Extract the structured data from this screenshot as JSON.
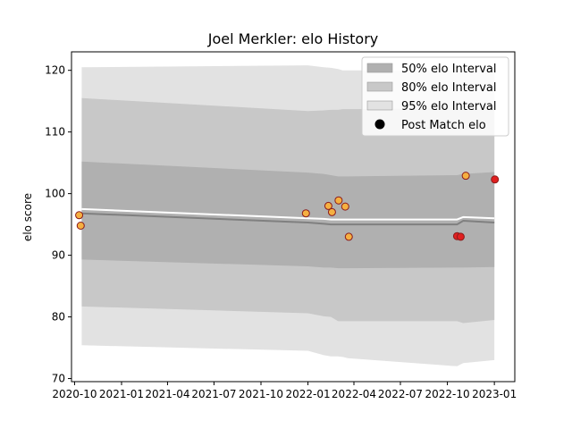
{
  "chart_data": {
    "type": "scatter",
    "title": "Joel Merkler: elo History",
    "xlabel": "",
    "ylabel": "elo score",
    "xlim": [
      "2020-09-25",
      "2023-02-10"
    ],
    "ylim": [
      69.5,
      123.0
    ],
    "x_ticks": [
      "2020-10",
      "2021-01",
      "2021-04",
      "2021-07",
      "2021-10",
      "2022-01",
      "2022-04",
      "2022-07",
      "2022-10",
      "2023-01"
    ],
    "y_ticks": [
      70,
      80,
      90,
      100,
      110,
      120
    ],
    "grid": false,
    "legend_position": "top-right",
    "legend": [
      {
        "label": "50% elo Interval",
        "kind": "band",
        "color": "#b0b0b0"
      },
      {
        "label": "80% elo Interval",
        "kind": "band",
        "color": "#c8c8c8"
      },
      {
        "label": "95% elo Interval",
        "kind": "band",
        "color": "#e2e2e2"
      },
      {
        "label": "Post Match elo",
        "kind": "marker",
        "color": "#000000"
      }
    ],
    "x": [
      "2020-10-15",
      "2022-01-01",
      "2022-02-01",
      "2022-02-15",
      "2022-03-01",
      "2022-03-10",
      "2022-03-20",
      "2022-10-20",
      "2022-11-01",
      "2023-01-01"
    ],
    "bands": {
      "p95": {
        "upper": [
          120.5,
          120.8,
          120.5,
          120.4,
          120.2,
          120.0,
          120.0,
          120.0,
          120.0,
          120.0
        ],
        "lower": [
          75.4,
          74.5,
          73.8,
          73.6,
          73.6,
          73.5,
          73.3,
          72.0,
          72.5,
          73.0
        ]
      },
      "p80": {
        "upper": [
          115.5,
          113.4,
          113.5,
          113.6,
          113.6,
          113.7,
          113.7,
          113.8,
          113.6,
          113.7
        ],
        "lower": [
          81.7,
          80.6,
          80.1,
          80.0,
          79.3,
          79.3,
          79.3,
          79.3,
          79.0,
          79.5
        ]
      },
      "p50": {
        "upper": [
          105.2,
          103.4,
          103.2,
          103.0,
          102.8,
          102.8,
          102.8,
          103.0,
          103.2,
          103.5
        ],
        "lower": [
          89.3,
          88.2,
          88.0,
          88.0,
          87.9,
          87.9,
          87.9,
          88.0,
          88.0,
          88.1
        ]
      }
    },
    "series": [
      {
        "kind": "median_line",
        "color": "#808080",
        "values": [
          96.8,
          95.3,
          95.1,
          95.0,
          95.0,
          95.0,
          95.0,
          95.0,
          95.6,
          95.3
        ]
      },
      {
        "kind": "mean_line",
        "color": "#ffffff",
        "values": [
          97.5,
          96.0,
          95.9,
          95.8,
          95.8,
          95.8,
          95.8,
          95.8,
          96.2,
          96.0
        ]
      },
      {
        "name": "Post Match elo",
        "kind": "points",
        "points": [
          {
            "x": "2020-10-10",
            "y": 96.5,
            "color": "#f5b041"
          },
          {
            "x": "2020-10-13",
            "y": 94.8,
            "color": "#f5b041"
          },
          {
            "x": "2021-12-28",
            "y": 96.8,
            "color": "#f5b041"
          },
          {
            "x": "2022-02-10",
            "y": 98.0,
            "color": "#f5b041"
          },
          {
            "x": "2022-02-17",
            "y": 97.0,
            "color": "#f5b041"
          },
          {
            "x": "2022-03-02",
            "y": 98.9,
            "color": "#f5b041"
          },
          {
            "x": "2022-03-15",
            "y": 97.9,
            "color": "#f5b041"
          },
          {
            "x": "2022-03-22",
            "y": 93.0,
            "color": "#f5b041"
          },
          {
            "x": "2022-10-20",
            "y": 93.1,
            "color": "#e02020"
          },
          {
            "x": "2022-10-27",
            "y": 93.0,
            "color": "#e02020"
          },
          {
            "x": "2022-11-06",
            "y": 102.9,
            "color": "#f5b041"
          },
          {
            "x": "2023-01-02",
            "y": 102.3,
            "color": "#e02020"
          }
        ]
      }
    ]
  }
}
